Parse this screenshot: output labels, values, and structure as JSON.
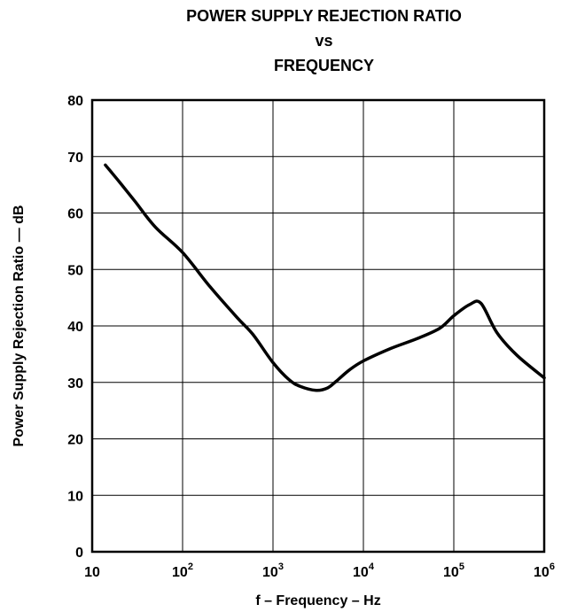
{
  "chart_data": {
    "type": "line",
    "title_lines": [
      "POWER SUPPLY REJECTION RATIO",
      "vs",
      "FREQUENCY"
    ],
    "xlabel": "f – Frequency – Hz",
    "ylabel": "Power Supply Rejection Ratio — dB",
    "x_scale": "log",
    "xlim": [
      10,
      1000000
    ],
    "ylim": [
      0,
      80
    ],
    "grid": true,
    "x_ticks": [
      {
        "base": "10",
        "exp": ""
      },
      {
        "base": "10",
        "exp": "2"
      },
      {
        "base": "10",
        "exp": "3"
      },
      {
        "base": "10",
        "exp": "4"
      },
      {
        "base": "10",
        "exp": "5"
      },
      {
        "base": "10",
        "exp": "6"
      }
    ],
    "y_ticks": [
      "0",
      "10",
      "20",
      "30",
      "40",
      "50",
      "60",
      "70",
      "80"
    ],
    "series": [
      {
        "color": "#000000",
        "x": [
          14,
          20,
          30,
          50,
          100,
          200,
          400,
          600,
          1000,
          1500,
          2000,
          3000,
          4000,
          5000,
          7000,
          10000,
          20000,
          40000,
          70000,
          100000,
          150000,
          200000,
          300000,
          500000,
          1000000
        ],
        "y": [
          68.5,
          65.5,
          62.0,
          57.5,
          53.0,
          47.0,
          41.5,
          38.5,
          33.5,
          30.5,
          29.3,
          28.6,
          29.0,
          30.2,
          32.2,
          33.8,
          36.0,
          37.8,
          39.6,
          41.8,
          43.8,
          44.0,
          38.8,
          34.8,
          30.8
        ]
      }
    ]
  }
}
